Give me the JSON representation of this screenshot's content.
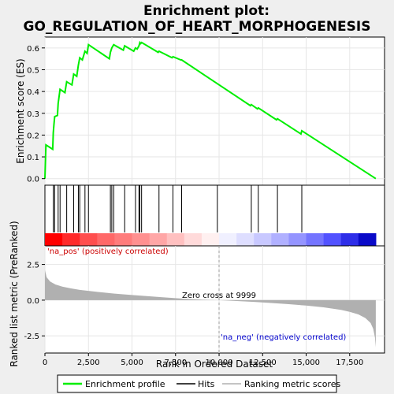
{
  "chart_data": {
    "type": "line",
    "title_line1": "Enrichment plot:",
    "title_line2": "GO_REGULATION_OF_HEART_MORPHOGENESIS",
    "xlabel": "Rank in Ordered Dataset",
    "ylabel_top": "Enrichment score (ES)",
    "ylabel_bottom": "Ranked list metric (PreRanked)",
    "xlim": [
      0,
      19500
    ],
    "x_ticks": [
      0,
      2500,
      5000,
      7500,
      10000,
      12500,
      15000,
      17500
    ],
    "x_tick_labels": [
      "0",
      "2,500",
      "5,000",
      "7,500",
      "10,000",
      "12,500",
      "15,000",
      "17,500"
    ],
    "es_ylim": [
      -0.03,
      0.65
    ],
    "es_ticks": [
      0.0,
      0.1,
      0.2,
      0.3,
      0.4,
      0.5,
      0.6
    ],
    "es_tick_labels": [
      "0.0",
      "0.1",
      "0.2",
      "0.3",
      "0.4",
      "0.5",
      "0.6"
    ],
    "metric_ylim": [
      -3.7,
      3.8
    ],
    "metric_ticks": [
      2.5,
      0.0,
      -2.5
    ],
    "metric_tick_labels": [
      "2.5",
      "0.0",
      "-2.5"
    ],
    "enrichment_profile": {
      "x": [
        0,
        60,
        450,
        480,
        520,
        560,
        720,
        760,
        870,
        1150,
        1250,
        1550,
        1650,
        1830,
        1920,
        2000,
        2150,
        2300,
        2420,
        2500,
        3700,
        3760,
        3840,
        3950,
        4500,
        4580,
        5100,
        5200,
        5300,
        5400,
        5450,
        5500,
        5550,
        6500,
        6550,
        7300,
        7350,
        7800,
        7850,
        11800,
        11850,
        12200,
        12250,
        13300,
        13350,
        14700,
        14750,
        19000
      ],
      "y": [
        0.0,
        0.155,
        0.135,
        0.21,
        0.25,
        0.285,
        0.29,
        0.345,
        0.41,
        0.395,
        0.445,
        0.43,
        0.48,
        0.47,
        0.52,
        0.555,
        0.545,
        0.585,
        0.575,
        0.615,
        0.55,
        0.58,
        0.6,
        0.615,
        0.59,
        0.61,
        0.585,
        0.6,
        0.595,
        0.61,
        0.625,
        0.62,
        0.625,
        0.58,
        0.585,
        0.555,
        0.56,
        0.545,
        0.545,
        0.335,
        0.34,
        0.32,
        0.325,
        0.27,
        0.275,
        0.205,
        0.22,
        0.0
      ]
    },
    "hits": [
      480,
      560,
      760,
      870,
      1250,
      1650,
      1920,
      2000,
      2300,
      2500,
      3760,
      3840,
      3950,
      4580,
      5200,
      5400,
      5450,
      5550,
      6550,
      7350,
      7850,
      9900,
      11850,
      12250,
      13350,
      14750
    ],
    "ranking_metric": {
      "x": [
        0,
        100,
        300,
        600,
        1000,
        1500,
        2000,
        3000,
        4000,
        5000,
        6000,
        7000,
        8000,
        9000,
        9999,
        11000,
        12000,
        13000,
        14000,
        15000,
        16000,
        17000,
        17500,
        18000,
        18400,
        18700,
        18850,
        18950,
        19000
      ],
      "y": [
        2.1,
        1.6,
        1.3,
        1.1,
        0.95,
        0.82,
        0.72,
        0.58,
        0.46,
        0.36,
        0.27,
        0.18,
        0.1,
        0.04,
        0.0,
        -0.06,
        -0.12,
        -0.2,
        -0.28,
        -0.38,
        -0.5,
        -0.68,
        -0.82,
        -1.0,
        -1.25,
        -1.6,
        -2.0,
        -2.6,
        -3.3
      ]
    },
    "zero_cross_x": 9999,
    "zero_cross_label": "Zero cross at 9999",
    "pos_label": "'na_pos' (positively correlated)",
    "neg_label": "'na_neg' (negatively correlated)",
    "gradient_bar": {
      "x": [
        0,
        1000,
        2000,
        3000,
        4000,
        5000,
        6000,
        7000,
        8000,
        9000,
        10000,
        11000,
        12000,
        13000,
        14000,
        15000,
        16000,
        17000,
        18000,
        19000
      ],
      "colors": [
        "#ff0000",
        "#ff2a2a",
        "#ff4e4e",
        "#ff6868",
        "#ff7c7c",
        "#ff9090",
        "#ffa6a6",
        "#ffc0c0",
        "#ffdada",
        "#fff0f0",
        "#f0f0ff",
        "#dedeff",
        "#c8c8ff",
        "#b0b0ff",
        "#9494ff",
        "#7474ff",
        "#5252ff",
        "#2e2ee8",
        "#0a0ac8",
        "#0a0ac8"
      ]
    },
    "legend": [
      {
        "name": "Enrichment profile",
        "color": "#00ee00"
      },
      {
        "name": "Hits",
        "color": "#000000"
      },
      {
        "name": "Ranking metric scores",
        "color": "#b0b0b0"
      }
    ],
    "colors": {
      "profile": "#00ee00",
      "hits": "#000000",
      "metric_fill": "#b0b0b0",
      "pos_text": "#cc0000",
      "neg_text": "#0000cc"
    }
  }
}
